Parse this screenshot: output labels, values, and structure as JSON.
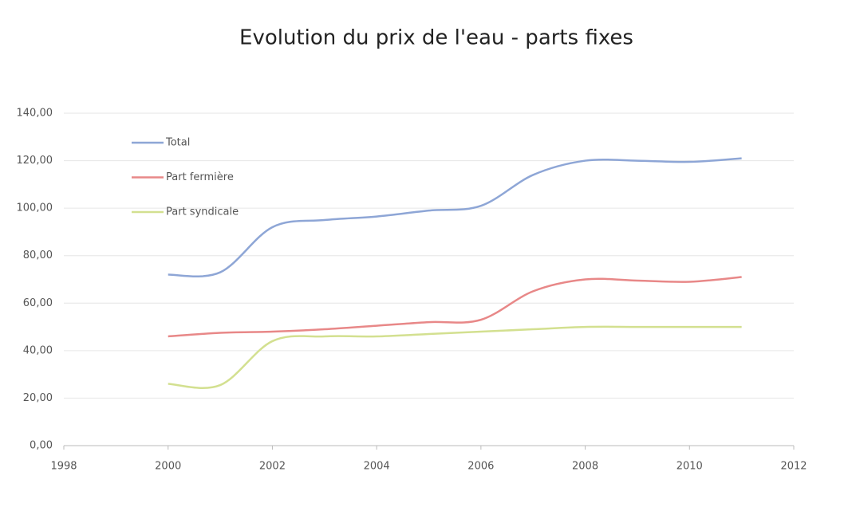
{
  "chart_data": {
    "type": "line",
    "title": "Evolution du prix de l'eau - parts fixes",
    "x": [
      2000,
      2001,
      2002,
      2003,
      2004,
      2005,
      2006,
      2007,
      2008,
      2009,
      2010,
      2011
    ],
    "series": [
      {
        "name": "Total",
        "color": "#8ea6d6",
        "values": [
          72,
          73,
          92,
          95,
          96.5,
          99,
          101,
          114,
          120,
          120,
          119.5,
          121
        ]
      },
      {
        "name": "Part fermière",
        "color": "#e88888",
        "values": [
          46,
          47.5,
          48,
          49,
          50.5,
          52,
          53,
          65,
          70,
          69.5,
          69,
          71
        ]
      },
      {
        "name": "Part syndicale",
        "color": "#d3e090",
        "values": [
          26,
          25.5,
          44,
          46,
          46,
          47,
          48,
          49,
          50,
          50,
          50,
          50
        ]
      }
    ],
    "xlim": [
      1998,
      2012
    ],
    "xticks": [
      1998,
      2000,
      2002,
      2004,
      2006,
      2008,
      2010,
      2012
    ],
    "ylim": [
      0,
      140
    ],
    "yticks": [
      {
        "value": 0,
        "label": "0,00"
      },
      {
        "value": 20,
        "label": "20,00"
      },
      {
        "value": 40,
        "label": "40,00"
      },
      {
        "value": 60,
        "label": "60,00"
      },
      {
        "value": 80,
        "label": "80,00"
      },
      {
        "value": 100,
        "label": "100,00"
      },
      {
        "value": 120,
        "label": "120,00"
      },
      {
        "value": 140,
        "label": "140,00"
      }
    ],
    "grid": true,
    "legend": "top-left",
    "smooth": true
  }
}
